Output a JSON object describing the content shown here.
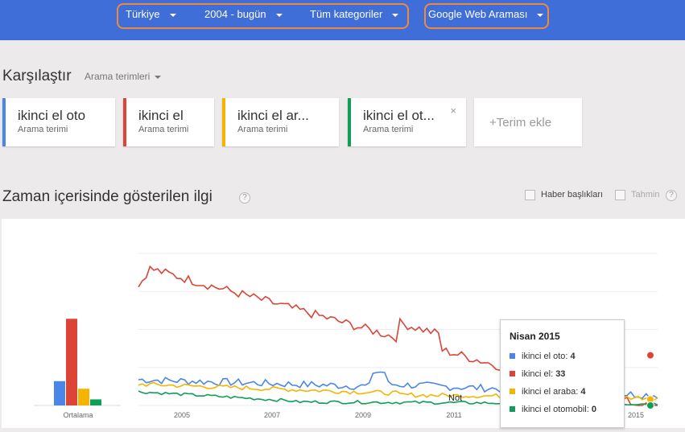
{
  "topbar": {
    "region": "Türkiye",
    "time_range": "2004 - bugün",
    "category": "Tüm kategoriler",
    "search_type": "Google Web Araması"
  },
  "compare": {
    "title": "Karşılaştır",
    "dropdown": "Arama terimleri",
    "terms": [
      {
        "label": "ikinci el oto",
        "sub": "Arama terimi",
        "color": "#4a86e8"
      },
      {
        "label": "ikinci el",
        "sub": "Arama terimi",
        "color": "#db4437"
      },
      {
        "label": "ikinci el ar...",
        "sub": "Arama terimi",
        "color": "#f4b400"
      },
      {
        "label": "ikinci el ot...",
        "sub": "Arama terimi",
        "color": "#0f9d58",
        "close": "×"
      }
    ],
    "add_term": "+Terim ekle"
  },
  "interest": {
    "title": "Zaman içerisinde gösterilen ilgi",
    "help": "?",
    "headlines_label": "Haber başlıkları",
    "forecast_label": "Tahmin"
  },
  "chart_data": {
    "type": "line",
    "series": [
      {
        "name": "ikinci el oto",
        "color": "#4a86e8",
        "average": 16
      },
      {
        "name": "ikinci el",
        "color": "#db4437",
        "average": 57
      },
      {
        "name": "ikinci el araba",
        "color": "#f4b400",
        "average": 11
      },
      {
        "name": "ikinci el otomobil",
        "color": "#0f9d58",
        "average": 4
      }
    ],
    "average_label": "Ortalama",
    "x_ticks": [
      "2005",
      "2007",
      "2009",
      "2011",
      "2015"
    ],
    "annotation": "Not",
    "ylim": [
      0,
      100
    ],
    "grid": true
  },
  "tooltip": {
    "title": "Nisan 2015",
    "rows": [
      {
        "name": "ikinci el oto:",
        "value": "4",
        "color": "#4a86e8"
      },
      {
        "name": "ikinci el:",
        "value": "33",
        "color": "#db4437"
      },
      {
        "name": "ikinci el araba:",
        "value": "4",
        "color": "#f4b400"
      },
      {
        "name": "ikinci el otomobil:",
        "value": "0",
        "color": "#0f9d58"
      }
    ]
  }
}
